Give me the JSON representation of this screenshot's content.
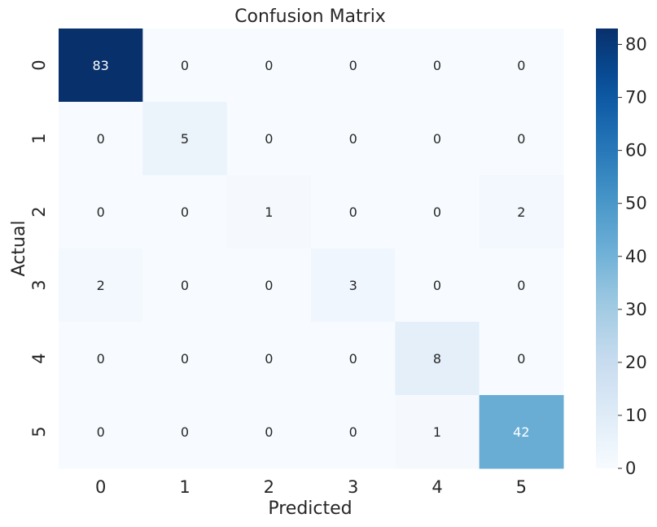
{
  "chart_data": {
    "type": "heatmap",
    "title": "Confusion Matrix",
    "xlabel": "Predicted",
    "ylabel": "Actual",
    "x_categories": [
      "0",
      "1",
      "2",
      "3",
      "4",
      "5"
    ],
    "y_categories": [
      "0",
      "1",
      "2",
      "3",
      "4",
      "5"
    ],
    "values": [
      [
        83,
        0,
        0,
        0,
        0,
        0
      ],
      [
        0,
        5,
        0,
        0,
        0,
        0
      ],
      [
        0,
        0,
        1,
        0,
        0,
        2
      ],
      [
        2,
        0,
        0,
        3,
        0,
        0
      ],
      [
        0,
        0,
        0,
        0,
        8,
        0
      ],
      [
        0,
        0,
        0,
        0,
        1,
        42
      ]
    ],
    "colormap": "Blues",
    "colorbar": {
      "range": [
        0,
        83
      ],
      "ticks": [
        0,
        10,
        20,
        30,
        40,
        50,
        60,
        70,
        80
      ]
    },
    "annotated": true,
    "grid": false
  }
}
